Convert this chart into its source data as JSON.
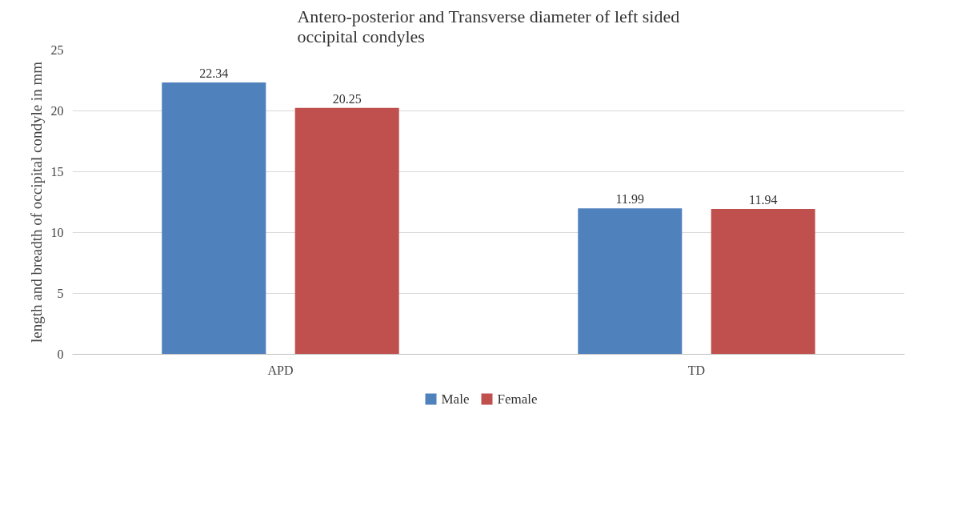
{
  "chart_data": {
    "type": "bar",
    "title": "Antero-posterior and Transverse diameter of left sided occipital condyles",
    "ylabel": "length and breadth of occipital condyle in mm",
    "categories": [
      "APD",
      "TD"
    ],
    "series": [
      {
        "name": "Male",
        "color": "#4f81bd",
        "values": [
          22.34,
          11.99
        ]
      },
      {
        "name": "Female",
        "color": "#c0504d",
        "values": [
          20.25,
          11.94
        ]
      }
    ],
    "ylim": [
      0,
      25
    ],
    "yticks": [
      0,
      5,
      10,
      15,
      20,
      25
    ],
    "grid": "y",
    "legend": "bottom",
    "data_labels": true
  }
}
